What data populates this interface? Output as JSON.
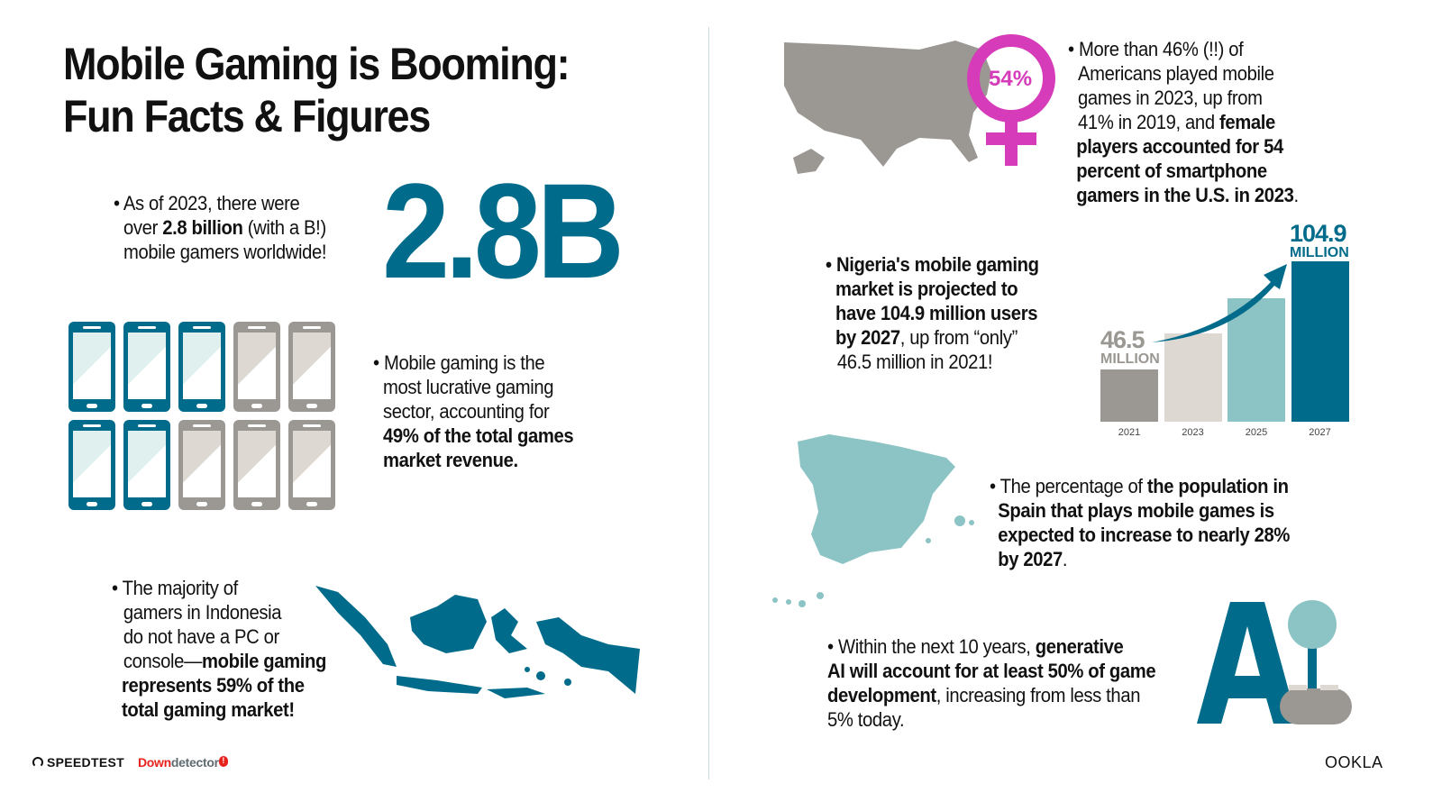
{
  "title": {
    "line1": "Mobile Gaming is Booming:",
    "line2": "Fun Facts & Figures"
  },
  "colors": {
    "teal_dark": "#006b8a",
    "teal_light": "#8cc4c5",
    "gray": "#9b9893",
    "beige": "#ddd8d1",
    "magenta": "#d63bb9"
  },
  "facts": {
    "gamers": {
      "pre": "• As of 2023, there were",
      "pre2": "over ",
      "bold": "2.8 billion",
      "post": " (with a B!)",
      "line3": "mobile gamers worldwide!",
      "big_number": "2.8B"
    },
    "revenue": {
      "l1": "• Mobile gaming is the",
      "l2": "most lucrative gaming",
      "l3": "sector, accounting for",
      "b1": "49% of the total games",
      "b2": "market revenue.",
      "share_percent": 49
    },
    "indonesia": {
      "l1": "• The majority of",
      "l2": "gamers in Indonesia",
      "l3": "do not have a PC or",
      "l4": "console—",
      "b1": "mobile gaming",
      "b2": "represents 59% of the",
      "b3": "total gaming market!"
    },
    "usa": {
      "badge": "54%",
      "l1": "• More than 46% (!!) of",
      "l2": "Americans played mobile",
      "l3": "games in 2023, up from",
      "l4": "41% in 2019, and ",
      "b1": "female",
      "b2": "players accounted for 54",
      "b3": "percent of smartphone",
      "b4": "gamers in the U.S. in 2023",
      "end": "."
    },
    "nigeria": {
      "b1": "• Nigeria's mobile gaming",
      "b2": "market is projected to",
      "b3": "have 104.9 million users",
      "b4": "by 2027",
      "p4": ", up from “only”",
      "l5": "46.5 million in 2021!"
    },
    "spain": {
      "l1": "• The percentage of ",
      "b1": "the population in",
      "b2": "Spain that plays mobile games is",
      "b3": "expected to increase to nearly 28%",
      "b4": "by 2027",
      "end": "."
    },
    "ai": {
      "l1": "• Within the next 10 years, ",
      "b1": "generative",
      "b2": "AI will account for at least 50% of game",
      "b3": "development",
      "p3": ", increasing from less than",
      "l4": "5% today.",
      "logo": "AI"
    }
  },
  "chart_data": {
    "type": "bar",
    "categories": [
      "2021",
      "2023",
      "2025",
      "2027"
    ],
    "values": [
      46.5,
      66,
      85,
      104.9
    ],
    "unit": "MILLION",
    "labels": {
      "first_value": "46.5",
      "first_unit": "MILLION",
      "last_value": "104.9",
      "last_unit": "MILLION"
    },
    "colors": [
      "#9b9893",
      "#ddd8d1",
      "#8cc4c5",
      "#006b8a"
    ]
  },
  "footer": {
    "speedtest": "SPEEDTEST",
    "down": "Down",
    "detector": "detector",
    "ookla": "OOKLA"
  }
}
